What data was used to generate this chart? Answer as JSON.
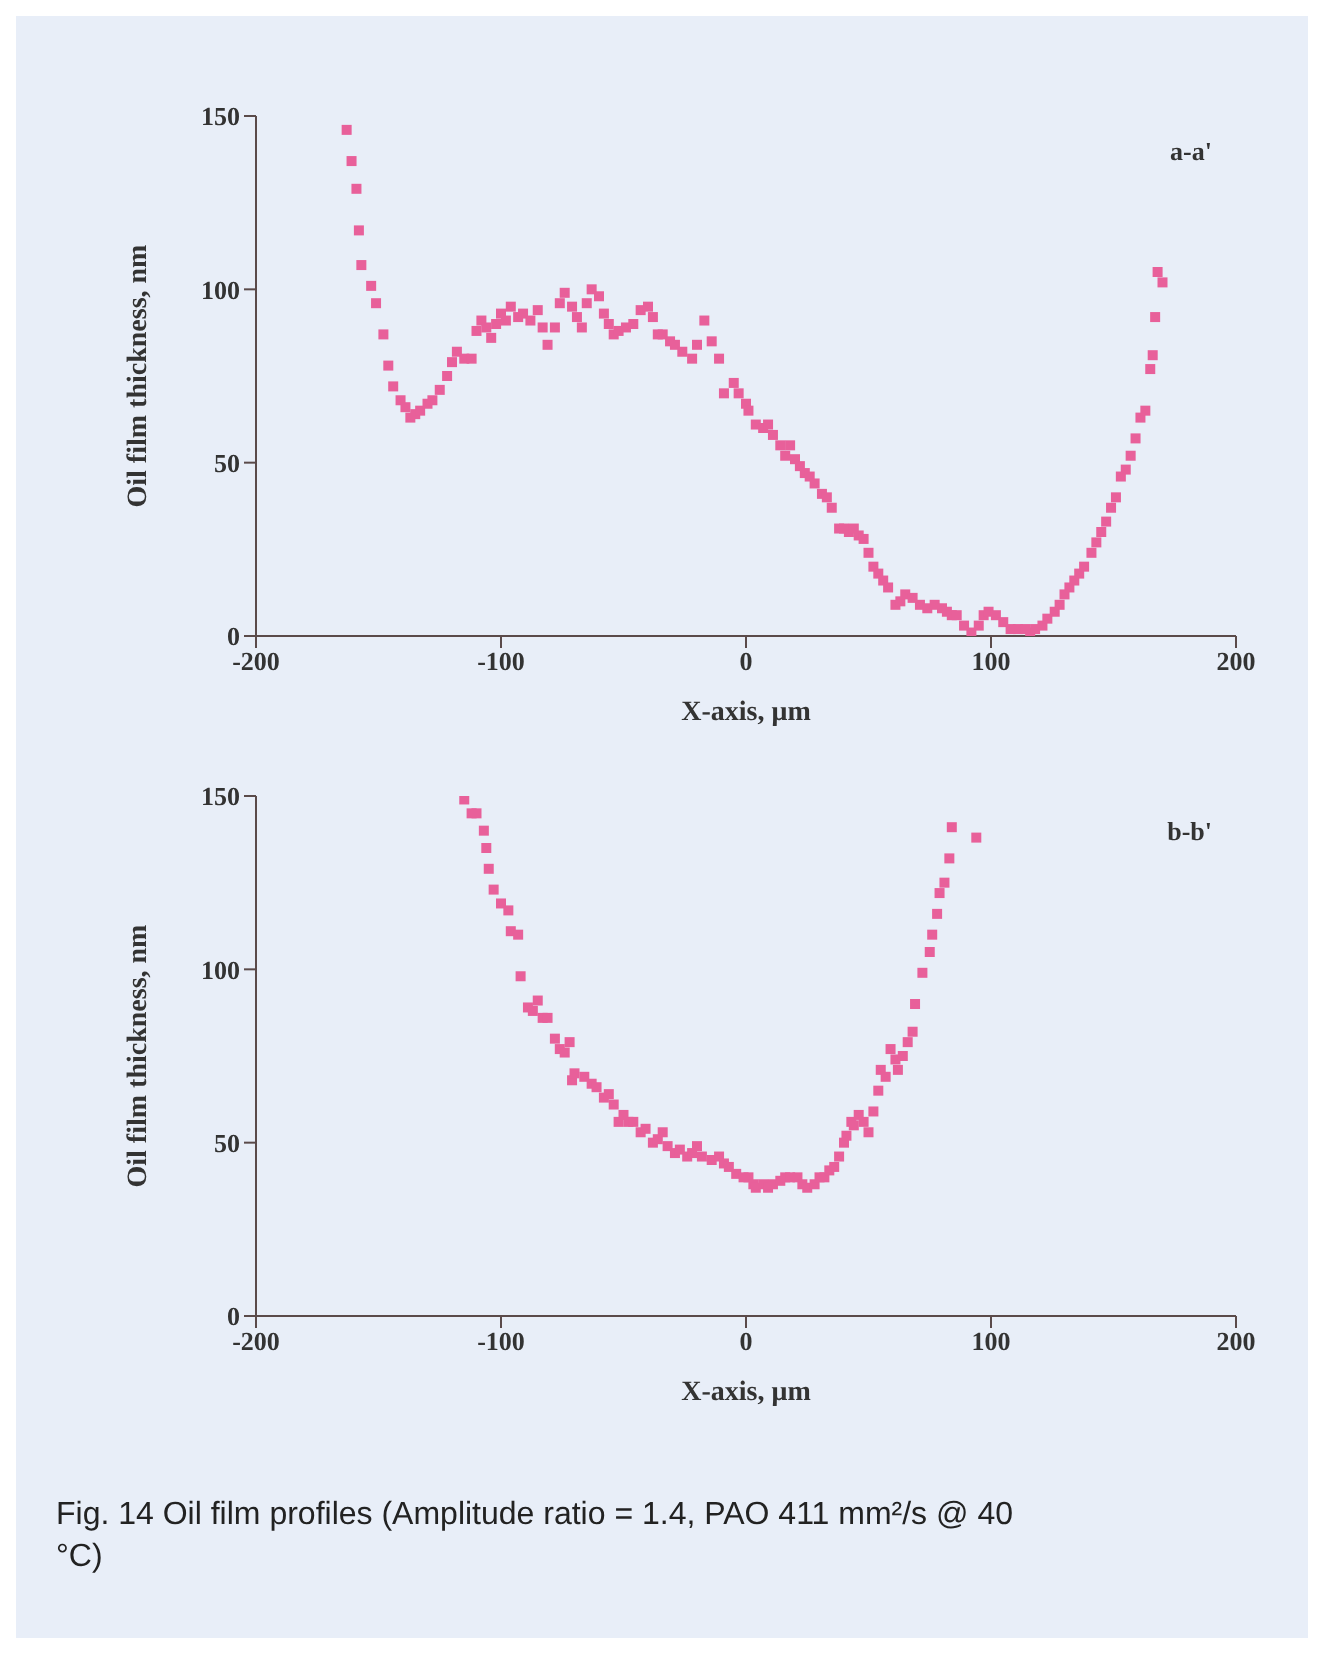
{
  "chart_data": [
    {
      "type": "scatter",
      "xlabel": "X-axis, μm",
      "ylabel": "Oil film thickness, nm",
      "color": "#e8609a",
      "marker": "square",
      "xlim": [
        -200,
        200
      ],
      "ylim": [
        0,
        150
      ],
      "xticks": [
        -200,
        -100,
        0,
        100,
        200
      ],
      "yticks": [
        0,
        50,
        100,
        150
      ],
      "annotations": [
        "a-a'"
      ],
      "x": [
        -163,
        -161,
        -159,
        -158,
        -157,
        -153,
        -151,
        -148,
        -146,
        -144,
        -141,
        -139,
        -137,
        -135,
        -133,
        -130,
        -128,
        -125,
        -122,
        -120,
        -118,
        -115,
        -112,
        -110,
        -108,
        -106,
        -104,
        -102,
        -100,
        -98,
        -96,
        -93,
        -91,
        -88,
        -85,
        -83,
        -81,
        -78,
        -76,
        -74,
        -71,
        -69,
        -67,
        -65,
        -63,
        -60,
        -58,
        -56,
        -54,
        -52,
        -49,
        -46,
        -43,
        -40,
        -38,
        -36,
        -34,
        -31,
        -29,
        -26,
        -22,
        -20,
        -17,
        -14,
        -11,
        -9,
        -5,
        -3,
        0,
        1,
        4,
        7,
        9,
        11,
        14,
        16,
        18,
        20,
        22,
        24,
        26,
        28,
        31,
        33,
        35,
        38,
        40,
        42,
        44,
        46,
        48,
        50,
        52,
        54,
        56,
        58,
        61,
        63,
        65,
        68,
        71,
        74,
        77,
        80,
        82,
        84,
        86,
        89,
        92,
        95,
        97,
        99,
        102,
        105,
        108,
        111,
        114,
        116,
        118,
        121,
        123,
        126,
        128,
        130,
        132,
        134,
        136,
        138,
        141,
        143,
        145,
        147,
        149,
        151,
        153,
        155,
        157,
        159,
        161,
        163,
        165,
        166,
        167,
        168,
        170
      ],
      "values": [
        146,
        137,
        129,
        117,
        107,
        101,
        96,
        87,
        78,
        72,
        68,
        66,
        63,
        64,
        65,
        67,
        68,
        71,
        75,
        79,
        82,
        80,
        80,
        88,
        91,
        89,
        86,
        90,
        93,
        91,
        95,
        92,
        93,
        91,
        94,
        89,
        84,
        89,
        96,
        99,
        95,
        92,
        89,
        96,
        100,
        98,
        93,
        90,
        87,
        88,
        89,
        90,
        94,
        95,
        92,
        87,
        87,
        85,
        84,
        82,
        80,
        84,
        91,
        85,
        80,
        70,
        73,
        70,
        67,
        65,
        61,
        60,
        61,
        58,
        55,
        52,
        55,
        51,
        49,
        47,
        46,
        44,
        41,
        40,
        37,
        31,
        31,
        30,
        31,
        29,
        28,
        24,
        20,
        18,
        16,
        14,
        9,
        10,
        12,
        11,
        9,
        8,
        9,
        8,
        7,
        6,
        6,
        3,
        1,
        3,
        6,
        7,
        6,
        4,
        2,
        2,
        2,
        1,
        2,
        3,
        5,
        7,
        9,
        12,
        14,
        16,
        18,
        20,
        24,
        27,
        30,
        33,
        37,
        40,
        46,
        48,
        52,
        57,
        63,
        65,
        77,
        81,
        92,
        105,
        102
      ]
    },
    {
      "type": "scatter",
      "xlabel": "X-axis, μm",
      "ylabel": "Oil film thickness, nm",
      "color": "#e8609a",
      "marker": "square",
      "xlim": [
        -200,
        200
      ],
      "ylim": [
        0,
        150
      ],
      "xticks": [
        -200,
        -100,
        0,
        100,
        200
      ],
      "yticks": [
        0,
        50,
        100,
        150
      ],
      "annotations": [
        "b-b'",
        "Fig. 14  Oil film profiles (Amplitude ratio = 1.4, PAO 411 mm²/s @ 40 °C)"
      ],
      "x": [
        -115,
        -112,
        -110,
        -107,
        -106,
        -105,
        -103,
        -100,
        -97,
        -96,
        -93,
        -92,
        -89,
        -87,
        -85,
        -83,
        -81,
        -78,
        -76,
        -74,
        -72,
        -71,
        -70,
        -66,
        -63,
        -61,
        -58,
        -56,
        -54,
        -52,
        -50,
        -48,
        -46,
        -43,
        -41,
        -38,
        -36,
        -34,
        -32,
        -29,
        -27,
        -24,
        -22,
        -20,
        -18,
        -14,
        -11,
        -9,
        -7,
        -4,
        -1,
        1,
        3,
        4,
        7,
        9,
        11,
        14,
        16,
        18,
        21,
        23,
        25,
        28,
        30,
        32,
        34,
        36,
        38,
        40,
        41,
        43,
        44,
        46,
        48,
        50,
        52,
        54,
        55,
        57,
        59,
        61,
        62,
        64,
        66,
        68,
        69,
        72,
        75,
        76,
        78,
        79,
        81,
        83,
        84,
        94
      ],
      "values": [
        149,
        145,
        145,
        140,
        135,
        129,
        123,
        119,
        117,
        111,
        110,
        98,
        89,
        88,
        91,
        86,
        86,
        80,
        77,
        76,
        79,
        68,
        70,
        69,
        67,
        66,
        63,
        64,
        61,
        56,
        58,
        56,
        56,
        53,
        54,
        50,
        51,
        53,
        49,
        47,
        48,
        46,
        47,
        49,
        46,
        45,
        46,
        44,
        43,
        41,
        40,
        40,
        38,
        37,
        38,
        37,
        38,
        39,
        40,
        40,
        40,
        38,
        37,
        38,
        40,
        40,
        42,
        43,
        46,
        50,
        52,
        56,
        55,
        58,
        56,
        53,
        59,
        65,
        71,
        69,
        77,
        74,
        71,
        75,
        79,
        82,
        90,
        99,
        105,
        110,
        116,
        122,
        125,
        132,
        141,
        138
      ]
    }
  ]
}
